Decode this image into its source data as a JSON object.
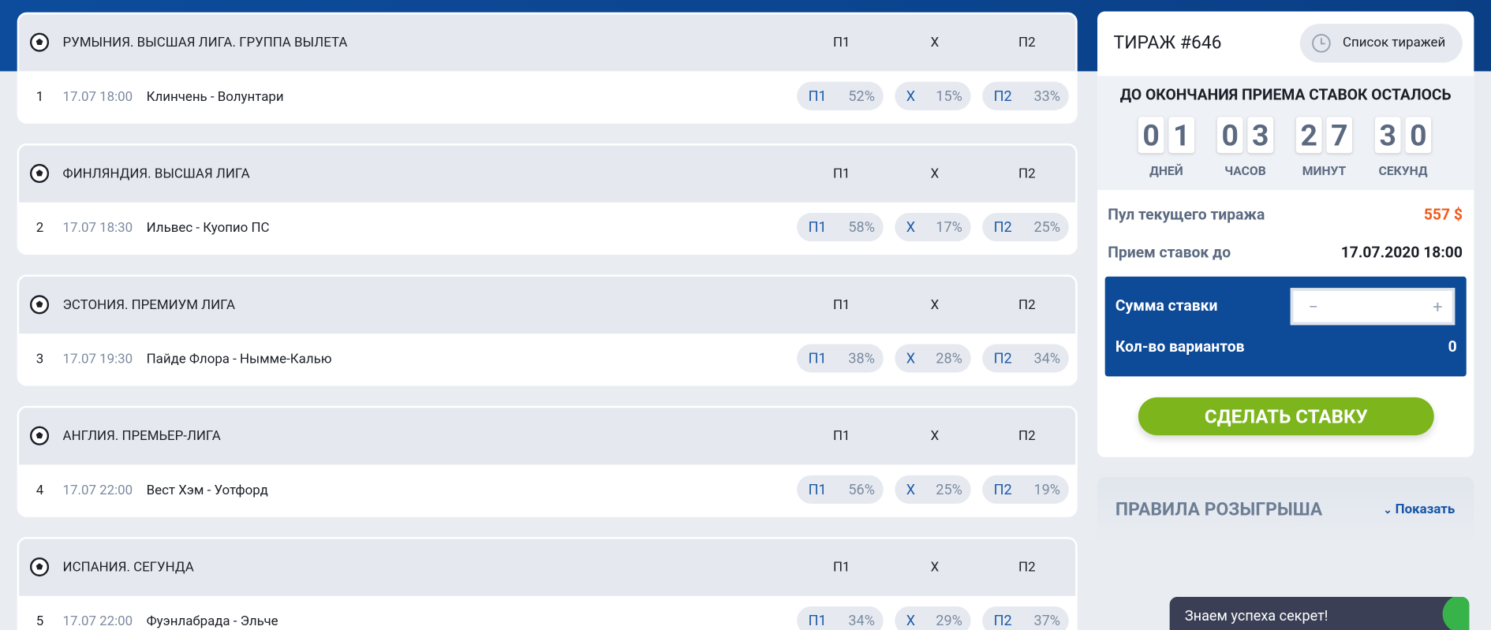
{
  "odds_headers": [
    "П1",
    "Х",
    "П2"
  ],
  "matches": [
    {
      "league": "РУМЫНИЯ. ВЫСШАЯ ЛИГА. ГРУППА ВЫЛЕТА",
      "number": "1",
      "datetime": "17.07 18:00",
      "teams": "Клинчень - Волунтари",
      "odds": [
        {
          "label": "П1",
          "pct": "52%"
        },
        {
          "label": "Х",
          "pct": "15%"
        },
        {
          "label": "П2",
          "pct": "33%"
        }
      ]
    },
    {
      "league": "ФИНЛЯНДИЯ. ВЫСШАЯ ЛИГА",
      "number": "2",
      "datetime": "17.07 18:30",
      "teams": "Ильвес - Куопио ПС",
      "odds": [
        {
          "label": "П1",
          "pct": "58%"
        },
        {
          "label": "Х",
          "pct": "17%"
        },
        {
          "label": "П2",
          "pct": "25%"
        }
      ]
    },
    {
      "league": "ЭСТОНИЯ. ПРЕМИУМ ЛИГА",
      "number": "3",
      "datetime": "17.07 19:30",
      "teams": "Пайде Флора - Нымме-Калью",
      "odds": [
        {
          "label": "П1",
          "pct": "38%"
        },
        {
          "label": "Х",
          "pct": "28%"
        },
        {
          "label": "П2",
          "pct": "34%"
        }
      ]
    },
    {
      "league": "АНГЛИЯ. ПРЕМЬЕР-ЛИГА",
      "number": "4",
      "datetime": "17.07 22:00",
      "teams": "Вест Хэм - Уотфорд",
      "odds": [
        {
          "label": "П1",
          "pct": "56%"
        },
        {
          "label": "Х",
          "pct": "25%"
        },
        {
          "label": "П2",
          "pct": "19%"
        }
      ]
    },
    {
      "league": "ИСПАНИЯ. СЕГУНДА",
      "number": "5",
      "datetime": "17.07 22:00",
      "teams": "Фуэнлабрада - Эльче",
      "odds": [
        {
          "label": "П1",
          "pct": "34%"
        },
        {
          "label": "Х",
          "pct": "29%"
        },
        {
          "label": "П2",
          "pct": "37%"
        }
      ]
    }
  ],
  "panel": {
    "title": "ТИРАЖ #646",
    "history_button": "Список тиражей",
    "countdown_heading": "ДО ОКОНЧАНИЯ ПРИЕМА СТАВОК ОСТАЛОСЬ",
    "countdown": [
      {
        "digits": [
          "0",
          "1"
        ],
        "unit": "ДНЕЙ"
      },
      {
        "digits": [
          "0",
          "3"
        ],
        "unit": "ЧАСОВ"
      },
      {
        "digits": [
          "2",
          "7"
        ],
        "unit": "МИНУТ"
      },
      {
        "digits": [
          "3",
          "0"
        ],
        "unit": "СЕКУНД"
      }
    ],
    "pool_label": "Пул текущего тиража",
    "pool_value": "557 $",
    "deadline_label": "Прием ставок до",
    "deadline_value": "17.07.2020 18:00",
    "stake_label": "Сумма ставки",
    "minus": "−",
    "plus": "+",
    "variants_label": "Кол-во вариантов",
    "variants_value": "0",
    "bet_button": "СДЕЛАТЬ СТАВКУ"
  },
  "rules": {
    "title": "ПРАВИЛА РОЗЫГРЫША",
    "toggle": "Показать"
  },
  "chat": {
    "text": "Знаем успеха секрет!"
  }
}
